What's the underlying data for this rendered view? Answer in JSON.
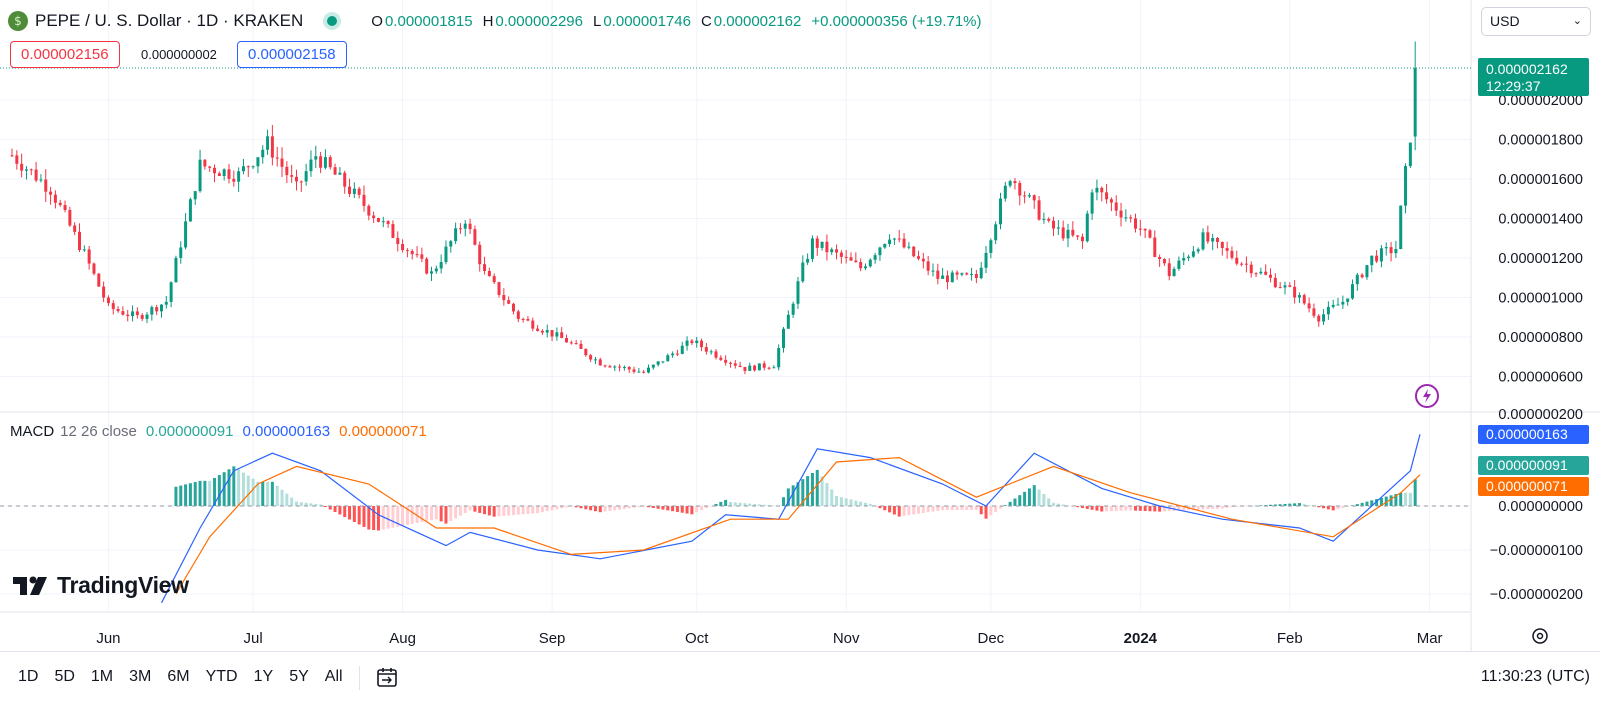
{
  "header": {
    "coin_glyph": "$",
    "symbol_title": "PEPE / U. S. Dollar · 1D · KRAKEN",
    "ohlc": [
      {
        "key": "O",
        "value": "0.000001815"
      },
      {
        "key": "H",
        "value": "0.000002296"
      },
      {
        "key": "L",
        "value": "0.000001746"
      },
      {
        "key": "C",
        "value": "0.000002162"
      }
    ],
    "change": "+0.000000356 (+19.71%)",
    "currency": "USD"
  },
  "trade": {
    "bid": "0.000002156",
    "spread": "0.000000002",
    "ask": "0.000002158"
  },
  "price_axis": {
    "labels": [
      "0.000002000",
      "0.000001800",
      "0.000001600",
      "0.000001400",
      "0.000001200",
      "0.000001000",
      "0.000000800",
      "0.000000600",
      "0.000000200"
    ],
    "last_price": "0.000002162",
    "countdown": "12:29:37"
  },
  "macd": {
    "name": "MACD",
    "params": "12 26 close",
    "hist_value": "0.000000091",
    "macd_value": "0.000000163",
    "signal_value": "0.000000071",
    "axis_labels": [
      "0.000000000",
      "−0.000000100",
      "−0.000000200"
    ]
  },
  "time_axis": [
    "Jun",
    "Jul",
    "Aug",
    "Sep",
    "Oct",
    "Nov",
    "Dec",
    "2024",
    "Feb",
    "Mar"
  ],
  "periods": [
    "1D",
    "5D",
    "1M",
    "3M",
    "6M",
    "YTD",
    "1Y",
    "5Y",
    "All"
  ],
  "clock": "11:30:23 (UTC)",
  "logo_text": "TradingView",
  "colors": {
    "up": "#089981",
    "down": "#f23645",
    "macd_line": "#2962ff",
    "signal_line": "#ff6d00",
    "hist_up_strong": "#26a69a",
    "hist_up_weak": "#b2dfdb",
    "hist_down_strong": "#ff5252",
    "hist_down_weak": "#ffcdd2"
  },
  "chart_data": [
    {
      "type": "candlestick",
      "title": "PEPE / U. S. Dollar · 1D · KRAKEN",
      "ylim": [
        5e-07,
        2.3e-06
      ],
      "x_range": [
        "2023-05-12",
        "2024-02-28"
      ],
      "anchors": [
        {
          "date": "2023-05-12",
          "close": 1.72e-06
        },
        {
          "date": "2023-05-20",
          "close": 1.55e-06
        },
        {
          "date": "2023-05-27",
          "close": 1.22e-06
        },
        {
          "date": "2023-06-01",
          "close": 9.5e-07
        },
        {
          "date": "2023-06-07",
          "close": 9e-07
        },
        {
          "date": "2023-06-13",
          "close": 9.8e-07
        },
        {
          "date": "2023-06-20",
          "close": 1.67e-06
        },
        {
          "date": "2023-06-28",
          "close": 1.62e-06
        },
        {
          "date": "2023-07-04",
          "close": 1.78e-06
        },
        {
          "date": "2023-07-10",
          "close": 1.55e-06
        },
        {
          "date": "2023-07-14",
          "close": 1.72e-06
        },
        {
          "date": "2023-07-22",
          "close": 1.52e-06
        },
        {
          "date": "2023-07-30",
          "close": 1.32e-06
        },
        {
          "date": "2023-08-07",
          "close": 1.12e-06
        },
        {
          "date": "2023-08-14",
          "close": 1.4e-06
        },
        {
          "date": "2023-08-18",
          "close": 1.12e-06
        },
        {
          "date": "2023-08-25",
          "close": 9e-07
        },
        {
          "date": "2023-09-04",
          "close": 7.8e-07
        },
        {
          "date": "2023-09-11",
          "close": 6.7e-07
        },
        {
          "date": "2023-09-20",
          "close": 6.2e-07
        },
        {
          "date": "2023-09-30",
          "close": 7.8e-07
        },
        {
          "date": "2023-10-05",
          "close": 7.1e-07
        },
        {
          "date": "2023-10-11",
          "close": 6.4e-07
        },
        {
          "date": "2023-10-17",
          "close": 6.6e-07
        },
        {
          "date": "2023-10-23",
          "close": 1.15e-06
        },
        {
          "date": "2023-10-25",
          "close": 1.28e-06
        },
        {
          "date": "2023-11-04",
          "close": 1.15e-06
        },
        {
          "date": "2023-11-10",
          "close": 1.32e-06
        },
        {
          "date": "2023-11-20",
          "close": 1.1e-06
        },
        {
          "date": "2023-11-28",
          "close": 1.1e-06
        },
        {
          "date": "2023-12-05",
          "close": 1.62e-06
        },
        {
          "date": "2023-12-13",
          "close": 1.36e-06
        },
        {
          "date": "2023-12-20",
          "close": 1.28e-06
        },
        {
          "date": "2023-12-22",
          "close": 1.56e-06
        },
        {
          "date": "2024-01-01",
          "close": 1.35e-06
        },
        {
          "date": "2024-01-07",
          "close": 1.12e-06
        },
        {
          "date": "2024-01-14",
          "close": 1.3e-06
        },
        {
          "date": "2024-01-22",
          "close": 1.18e-06
        },
        {
          "date": "2024-02-02",
          "close": 1.02e-06
        },
        {
          "date": "2024-02-07",
          "close": 9e-07
        },
        {
          "date": "2024-02-12",
          "close": 9.8e-07
        },
        {
          "date": "2024-02-18",
          "close": 1.2e-06
        },
        {
          "date": "2024-02-23",
          "close": 1.25e-06
        },
        {
          "date": "2024-02-26",
          "close": 1.82e-06
        },
        {
          "date": "2024-02-27",
          "close": 2.162e-06
        }
      ],
      "last_candle": {
        "open": 1.815e-06,
        "high": 2.296e-06,
        "low": 1.746e-06,
        "close": 2.162e-06
      }
    },
    {
      "type": "line",
      "title": "MACD 12 26 close",
      "ylim": [
        -2.5e-07,
        2.2e-07
      ],
      "series": [
        {
          "name": "MACD",
          "color": "#2962ff",
          "points": [
            [
              "2023-06-12",
              -2.2e-07
            ],
            [
              "2023-06-20",
              -5e-08
            ],
            [
              "2023-06-27",
              8e-08
            ],
            [
              "2023-07-05",
              1.2e-07
            ],
            [
              "2023-07-15",
              8e-08
            ],
            [
              "2023-07-27",
              -2e-08
            ],
            [
              "2023-08-10",
              -9e-08
            ],
            [
              "2023-08-15",
              -6e-08
            ],
            [
              "2023-08-29",
              -1e-07
            ],
            [
              "2023-09-11",
              -1.2e-07
            ],
            [
              "2023-09-30",
              -8e-08
            ],
            [
              "2023-10-07",
              -2e-08
            ],
            [
              "2023-10-18",
              -3e-08
            ],
            [
              "2023-10-26",
              1.3e-07
            ],
            [
              "2023-11-06",
              1.1e-07
            ],
            [
              "2023-11-21",
              5e-08
            ],
            [
              "2023-11-30",
              0.0
            ],
            [
              "2023-12-10",
              1.2e-07
            ],
            [
              "2023-12-24",
              4e-08
            ],
            [
              "2024-01-05",
              0.0
            ],
            [
              "2024-01-18",
              -3e-08
            ],
            [
              "2024-02-03",
              -5e-08
            ],
            [
              "2024-02-10",
              -8e-08
            ],
            [
              "2024-02-20",
              2e-08
            ],
            [
              "2024-02-26",
              8e-08
            ],
            [
              "2024-02-28",
              1.63e-07
            ]
          ]
        },
        {
          "name": "Signal",
          "color": "#ff6d00",
          "points": [
            [
              "2023-06-15",
              -2e-07
            ],
            [
              "2023-06-22",
              -7e-08
            ],
            [
              "2023-07-02",
              5e-08
            ],
            [
              "2023-07-10",
              9e-08
            ],
            [
              "2023-07-25",
              5e-08
            ],
            [
              "2023-08-08",
              -5e-08
            ],
            [
              "2023-08-20",
              -5e-08
            ],
            [
              "2023-09-05",
              -1.1e-07
            ],
            [
              "2023-09-20",
              -1e-07
            ],
            [
              "2023-10-08",
              -3e-08
            ],
            [
              "2023-10-20",
              -3e-08
            ],
            [
              "2023-10-30",
              1e-07
            ],
            [
              "2023-11-12",
              1.1e-07
            ],
            [
              "2023-11-28",
              2e-08
            ],
            [
              "2023-12-14",
              9e-08
            ],
            [
              "2023-12-30",
              3e-08
            ],
            [
              "2024-01-20",
              -3e-08
            ],
            [
              "2024-02-10",
              -7e-08
            ],
            [
              "2024-02-24",
              3e-08
            ],
            [
              "2024-02-28",
              7.1e-08
            ]
          ]
        }
      ],
      "histogram_last": 9.1e-08
    }
  ]
}
